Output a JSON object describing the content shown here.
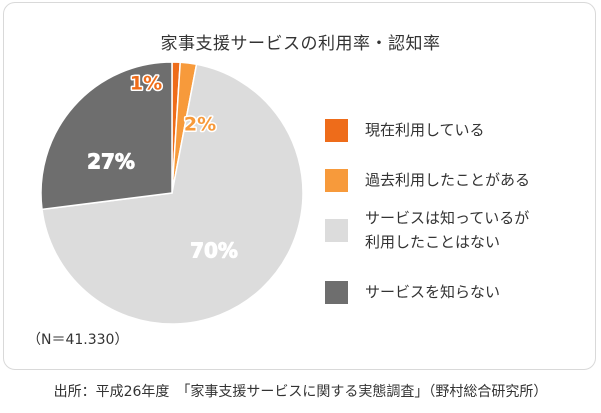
{
  "chart_data": {
    "type": "pie",
    "title": "家事支援サービスの利用率・認知率",
    "slices": [
      {
        "label": "現在利用している",
        "value": 1,
        "display": "1%",
        "color": "#ee6c1a"
      },
      {
        "label": "過去利用したことがある",
        "value": 2,
        "display": "2%",
        "color": "#f79a3b"
      },
      {
        "label": "サービスは知っているが\n利用したことはない",
        "value": 70,
        "display": "70%",
        "color": "#dcdcdc"
      },
      {
        "label": "サービスを知らない",
        "value": 27,
        "display": "27%",
        "color": "#6e6e6e"
      }
    ],
    "legend_position": "right",
    "note": "（N＝41.330）"
  },
  "source": "出所：平成26年度　「家事支援サービスに関する実態調査」（野村総合研究所）"
}
